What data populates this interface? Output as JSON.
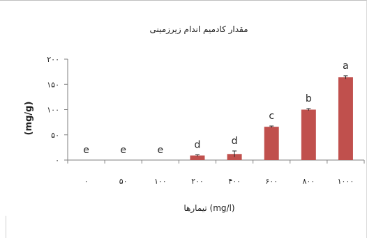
{
  "chart_data": {
    "type": "bar",
    "title": "مقدار کادمیم اندام زیرزمینی",
    "xlabel": "تیمارها (mg/l)",
    "ylabel": "(mg/g)",
    "categories": [
      "۰",
      "۵۰",
      "۱۰۰",
      "۲۰۰",
      "۴۰۰",
      "۶۰۰",
      "۸۰۰",
      "۱۰۰۰"
    ],
    "values": [
      0,
      0,
      0,
      9,
      12,
      66,
      100,
      164
    ],
    "errors": [
      0,
      0,
      0,
      1.5,
      6,
      1.5,
      2,
      3
    ],
    "letters": [
      "e",
      "e",
      "e",
      "d",
      "d",
      "c",
      "b",
      "a"
    ],
    "ylim": [
      0,
      200
    ],
    "yticks": [
      0,
      50,
      100,
      150,
      200
    ],
    "ytick_labels": [
      "۰",
      "۵۰",
      "۱۰۰",
      "۱۵۰",
      "۲۰۰"
    ],
    "bar_color": "#c0504d",
    "grid": false,
    "legend": "none"
  }
}
